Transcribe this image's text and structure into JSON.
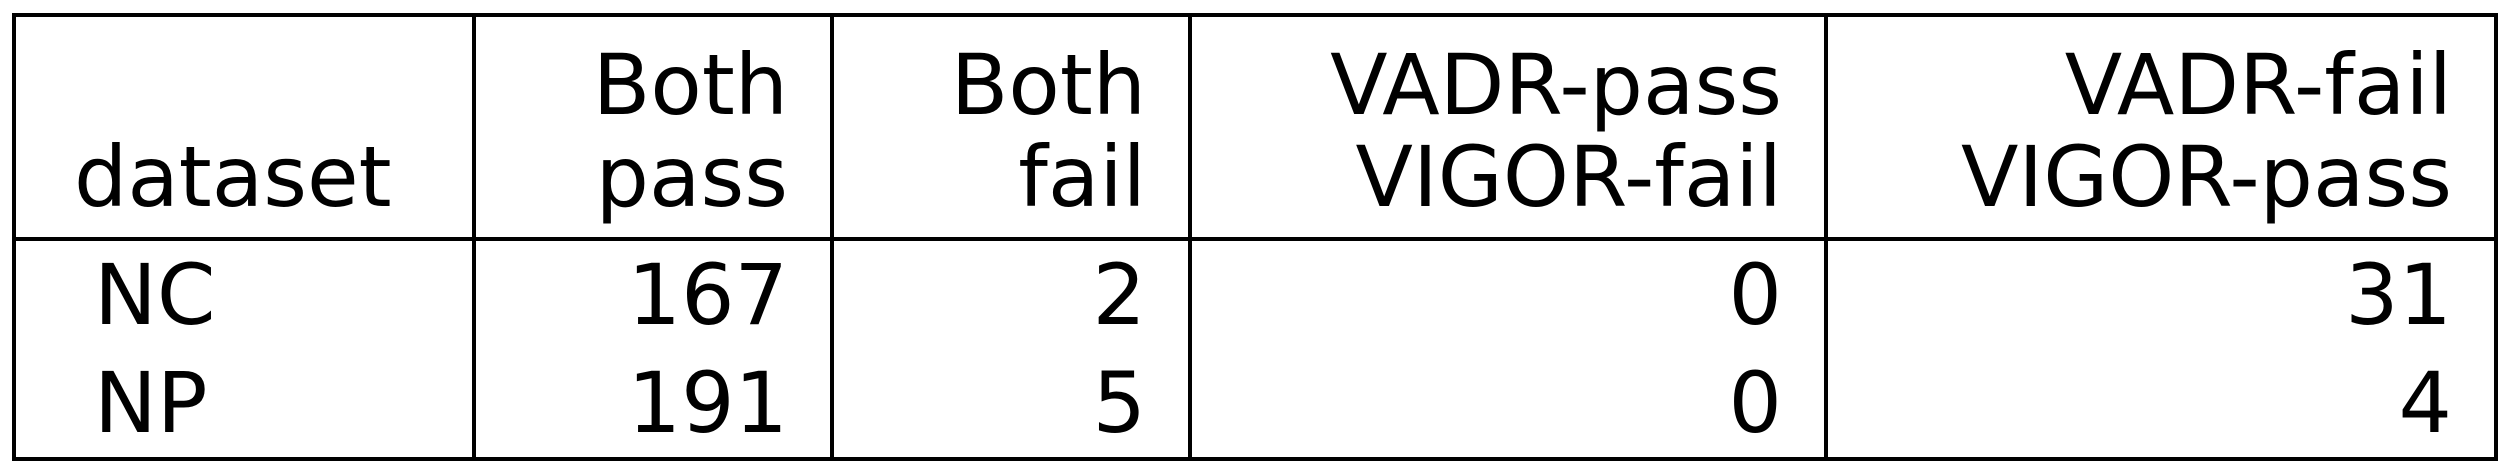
{
  "table": {
    "headers": [
      {
        "lines": [
          "dataset"
        ]
      },
      {
        "lines": [
          "Both",
          "pass"
        ]
      },
      {
        "lines": [
          "Both",
          "fail"
        ]
      },
      {
        "lines": [
          "VADR-pass",
          "VIGOR-fail"
        ]
      },
      {
        "lines": [
          "VADR-fail",
          "VIGOR-pass"
        ]
      }
    ],
    "rows": [
      [
        "NC",
        "167",
        "2",
        "0",
        "31"
      ],
      [
        "NP",
        "191",
        "5",
        "0",
        "4"
      ]
    ]
  }
}
